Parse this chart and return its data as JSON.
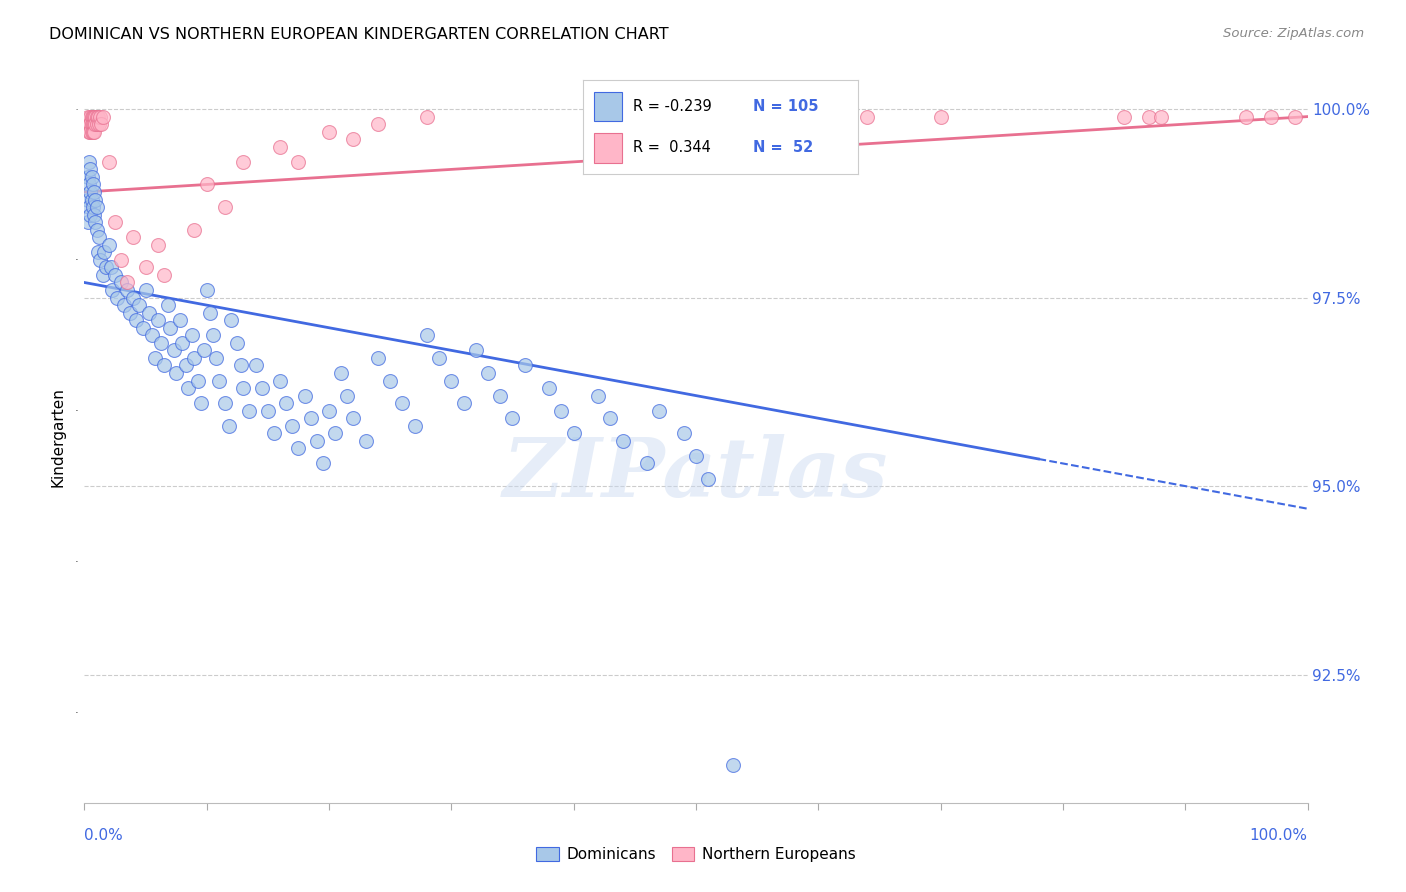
{
  "title": "DOMINICAN VS NORTHERN EUROPEAN KINDERGARTEN CORRELATION CHART",
  "source": "Source: ZipAtlas.com",
  "ylabel": "Kindergarten",
  "ytick_labels": [
    "92.5%",
    "95.0%",
    "97.5%",
    "100.0%"
  ],
  "ytick_values": [
    0.925,
    0.95,
    0.975,
    1.0
  ],
  "xrange": [
    0.0,
    1.0
  ],
  "yrange": [
    0.908,
    1.005
  ],
  "dominican_color": "#a8c8e8",
  "northern_color": "#ffb6c8",
  "trend_blue": "#4169E1",
  "trend_pink": "#e87090",
  "watermark": "ZIPatlas",
  "blue_trend_x0": 0.0,
  "blue_trend_y0": 0.977,
  "blue_trend_x1": 1.0,
  "blue_trend_y1": 0.947,
  "blue_trend_solid_end": 0.78,
  "pink_trend_x0": 0.0,
  "pink_trend_y0": 0.989,
  "pink_trend_x1": 1.0,
  "pink_trend_y1": 0.999,
  "blue_points": [
    [
      0.003,
      0.991
    ],
    [
      0.003,
      0.988
    ],
    [
      0.003,
      0.985
    ],
    [
      0.004,
      0.993
    ],
    [
      0.004,
      0.99
    ],
    [
      0.004,
      0.987
    ],
    [
      0.005,
      0.992
    ],
    [
      0.005,
      0.989
    ],
    [
      0.005,
      0.986
    ],
    [
      0.006,
      0.991
    ],
    [
      0.006,
      0.988
    ],
    [
      0.007,
      0.99
    ],
    [
      0.007,
      0.987
    ],
    [
      0.008,
      0.989
    ],
    [
      0.008,
      0.986
    ],
    [
      0.009,
      0.988
    ],
    [
      0.009,
      0.985
    ],
    [
      0.01,
      0.987
    ],
    [
      0.01,
      0.984
    ],
    [
      0.011,
      0.981
    ],
    [
      0.012,
      0.983
    ],
    [
      0.013,
      0.98
    ],
    [
      0.015,
      0.978
    ],
    [
      0.016,
      0.981
    ],
    [
      0.018,
      0.979
    ],
    [
      0.02,
      0.982
    ],
    [
      0.022,
      0.979
    ],
    [
      0.023,
      0.976
    ],
    [
      0.025,
      0.978
    ],
    [
      0.027,
      0.975
    ],
    [
      0.03,
      0.977
    ],
    [
      0.032,
      0.974
    ],
    [
      0.035,
      0.976
    ],
    [
      0.037,
      0.973
    ],
    [
      0.04,
      0.975
    ],
    [
      0.042,
      0.972
    ],
    [
      0.045,
      0.974
    ],
    [
      0.048,
      0.971
    ],
    [
      0.05,
      0.976
    ],
    [
      0.053,
      0.973
    ],
    [
      0.055,
      0.97
    ],
    [
      0.058,
      0.967
    ],
    [
      0.06,
      0.972
    ],
    [
      0.063,
      0.969
    ],
    [
      0.065,
      0.966
    ],
    [
      0.068,
      0.974
    ],
    [
      0.07,
      0.971
    ],
    [
      0.073,
      0.968
    ],
    [
      0.075,
      0.965
    ],
    [
      0.078,
      0.972
    ],
    [
      0.08,
      0.969
    ],
    [
      0.083,
      0.966
    ],
    [
      0.085,
      0.963
    ],
    [
      0.088,
      0.97
    ],
    [
      0.09,
      0.967
    ],
    [
      0.093,
      0.964
    ],
    [
      0.095,
      0.961
    ],
    [
      0.098,
      0.968
    ],
    [
      0.1,
      0.976
    ],
    [
      0.103,
      0.973
    ],
    [
      0.105,
      0.97
    ],
    [
      0.108,
      0.967
    ],
    [
      0.11,
      0.964
    ],
    [
      0.115,
      0.961
    ],
    [
      0.118,
      0.958
    ],
    [
      0.12,
      0.972
    ],
    [
      0.125,
      0.969
    ],
    [
      0.128,
      0.966
    ],
    [
      0.13,
      0.963
    ],
    [
      0.135,
      0.96
    ],
    [
      0.14,
      0.966
    ],
    [
      0.145,
      0.963
    ],
    [
      0.15,
      0.96
    ],
    [
      0.155,
      0.957
    ],
    [
      0.16,
      0.964
    ],
    [
      0.165,
      0.961
    ],
    [
      0.17,
      0.958
    ],
    [
      0.175,
      0.955
    ],
    [
      0.18,
      0.962
    ],
    [
      0.185,
      0.959
    ],
    [
      0.19,
      0.956
    ],
    [
      0.195,
      0.953
    ],
    [
      0.2,
      0.96
    ],
    [
      0.205,
      0.957
    ],
    [
      0.21,
      0.965
    ],
    [
      0.215,
      0.962
    ],
    [
      0.22,
      0.959
    ],
    [
      0.23,
      0.956
    ],
    [
      0.24,
      0.967
    ],
    [
      0.25,
      0.964
    ],
    [
      0.26,
      0.961
    ],
    [
      0.27,
      0.958
    ],
    [
      0.28,
      0.97
    ],
    [
      0.29,
      0.967
    ],
    [
      0.3,
      0.964
    ],
    [
      0.31,
      0.961
    ],
    [
      0.32,
      0.968
    ],
    [
      0.33,
      0.965
    ],
    [
      0.34,
      0.962
    ],
    [
      0.35,
      0.959
    ],
    [
      0.36,
      0.966
    ],
    [
      0.38,
      0.963
    ],
    [
      0.39,
      0.96
    ],
    [
      0.4,
      0.957
    ],
    [
      0.42,
      0.962
    ],
    [
      0.43,
      0.959
    ],
    [
      0.44,
      0.956
    ],
    [
      0.46,
      0.953
    ],
    [
      0.47,
      0.96
    ],
    [
      0.49,
      0.957
    ],
    [
      0.5,
      0.954
    ],
    [
      0.51,
      0.951
    ],
    [
      0.53,
      0.913
    ]
  ],
  "pink_points": [
    [
      0.003,
      0.999
    ],
    [
      0.004,
      0.998
    ],
    [
      0.004,
      0.997
    ],
    [
      0.005,
      0.999
    ],
    [
      0.005,
      0.998
    ],
    [
      0.005,
      0.997
    ],
    [
      0.006,
      0.999
    ],
    [
      0.006,
      0.998
    ],
    [
      0.006,
      0.997
    ],
    [
      0.007,
      0.999
    ],
    [
      0.007,
      0.998
    ],
    [
      0.007,
      0.997
    ],
    [
      0.008,
      0.999
    ],
    [
      0.008,
      0.998
    ],
    [
      0.008,
      0.997
    ],
    [
      0.009,
      0.999
    ],
    [
      0.009,
      0.998
    ],
    [
      0.01,
      0.999
    ],
    [
      0.01,
      0.998
    ],
    [
      0.011,
      0.999
    ],
    [
      0.012,
      0.998
    ],
    [
      0.013,
      0.999
    ],
    [
      0.014,
      0.998
    ],
    [
      0.015,
      0.999
    ],
    [
      0.02,
      0.993
    ],
    [
      0.025,
      0.985
    ],
    [
      0.03,
      0.98
    ],
    [
      0.035,
      0.977
    ],
    [
      0.04,
      0.983
    ],
    [
      0.05,
      0.979
    ],
    [
      0.06,
      0.982
    ],
    [
      0.065,
      0.978
    ],
    [
      0.09,
      0.984
    ],
    [
      0.1,
      0.99
    ],
    [
      0.115,
      0.987
    ],
    [
      0.13,
      0.993
    ],
    [
      0.16,
      0.995
    ],
    [
      0.175,
      0.993
    ],
    [
      0.2,
      0.997
    ],
    [
      0.22,
      0.996
    ],
    [
      0.24,
      0.998
    ],
    [
      0.28,
      0.999
    ],
    [
      0.49,
      0.999
    ],
    [
      0.51,
      0.999
    ],
    [
      0.64,
      0.999
    ],
    [
      0.7,
      0.999
    ],
    [
      0.85,
      0.999
    ],
    [
      0.87,
      0.999
    ],
    [
      0.88,
      0.999
    ],
    [
      0.95,
      0.999
    ],
    [
      0.97,
      0.999
    ],
    [
      0.99,
      0.999
    ]
  ]
}
